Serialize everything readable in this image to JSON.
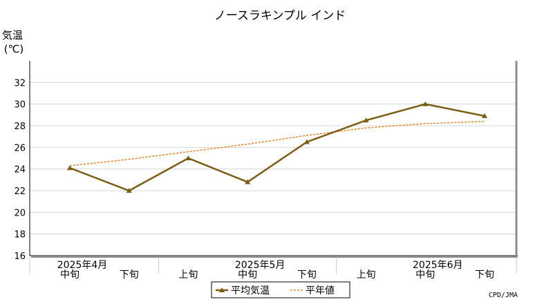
{
  "chart_data": {
    "type": "line",
    "title": "ノースラキンプル インド",
    "ylabel": "気温",
    "yunit": "(℃)",
    "ylim": [
      16,
      34
    ],
    "yticks": [
      16,
      18,
      20,
      22,
      24,
      26,
      28,
      30,
      32
    ],
    "categories": [
      "中旬",
      "下旬",
      "上旬",
      "中旬",
      "下旬",
      "上旬",
      "中旬",
      "下旬"
    ],
    "months": [
      {
        "label": "2025年4月",
        "index": 0
      },
      {
        "label": "2025年5月",
        "index": 3
      },
      {
        "label": "2025年6月",
        "index": 6
      }
    ],
    "series": [
      {
        "name": "平均気温",
        "color": "#7a5c12",
        "style": "solid-marker",
        "values": [
          24.1,
          22.0,
          25.0,
          22.8,
          26.5,
          28.5,
          30.0,
          28.9
        ]
      },
      {
        "name": "平年値",
        "color": "#f08020",
        "style": "dashed",
        "values": [
          24.3,
          24.9,
          25.6,
          26.3,
          27.1,
          27.8,
          28.2,
          28.4
        ]
      }
    ],
    "grid": true,
    "legend": "bottom-center",
    "credit": "CPD/JMA"
  }
}
